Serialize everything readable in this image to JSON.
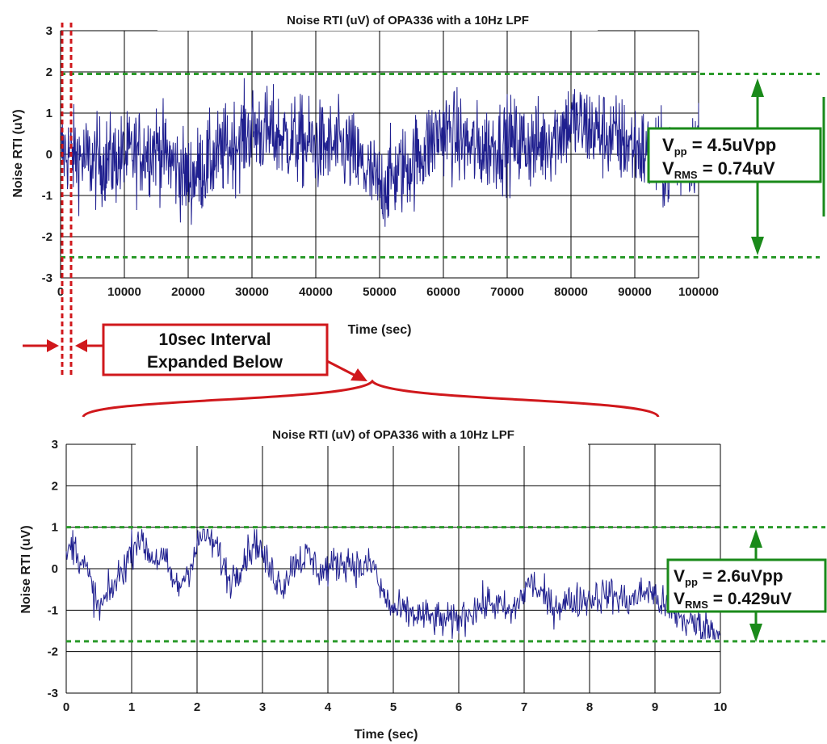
{
  "chart_data": [
    {
      "type": "line",
      "title": "Noise RTI (uV) of OPA336 with a 10Hz LPF",
      "xlabel": "Time (sec)",
      "ylabel": "Noise RTI (uV)",
      "xlim": [
        0,
        100000
      ],
      "ylim": [
        -3,
        3
      ],
      "x_ticks": [
        "0",
        "10000",
        "20000",
        "30000",
        "40000",
        "50000",
        "60000",
        "70000",
        "80000",
        "90000",
        "100000"
      ],
      "y_ticks": [
        "3",
        "2",
        "1",
        "0",
        "-1",
        "-2",
        "-3"
      ],
      "grid": true,
      "peak_lines": [
        1.95,
        -2.5
      ],
      "stats": {
        "vpp": "4.5uVpp",
        "vrms": "0.74uV"
      },
      "series": [
        {
          "color": "#1f1f8f",
          "x": [
            0,
            5000,
            10000,
            15000,
            20000,
            25000,
            30000,
            35000,
            40000,
            45000,
            50000,
            55000,
            60000,
            65000,
            70000,
            75000,
            80000,
            85000,
            90000,
            95000,
            100000
          ],
          "y": [
            0.1,
            -0.2,
            -0.1,
            0.2,
            -0.6,
            0.0,
            0.6,
            0.4,
            0.2,
            0.1,
            -0.8,
            -0.2,
            0.6,
            0.1,
            0.3,
            0.2,
            0.8,
            0.5,
            0.2,
            -0.3,
            0.2
          ]
        }
      ]
    },
    {
      "type": "line",
      "title": "Noise RTI (uV) of OPA336 with a 10Hz LPF",
      "xlabel": "Time (sec)",
      "ylabel": "Noise RTI (uV)",
      "xlim": [
        0,
        10
      ],
      "ylim": [
        -3,
        3
      ],
      "x_ticks": [
        "0",
        "1",
        "2",
        "3",
        "4",
        "5",
        "6",
        "7",
        "8",
        "9",
        "10"
      ],
      "y_ticks": [
        "3",
        "2",
        "1",
        "0",
        "-1",
        "-2",
        "-3"
      ],
      "grid": true,
      "peak_lines": [
        1.0,
        -1.75
      ],
      "stats": {
        "vpp": "2.6uVpp",
        "vrms": "0.429uV"
      },
      "series": [
        {
          "color": "#1f1f8f",
          "x": [
            0,
            0.1,
            0.3,
            0.5,
            0.7,
            0.9,
            1.1,
            1.3,
            1.5,
            1.7,
            1.9,
            2.1,
            2.3,
            2.5,
            2.7,
            2.9,
            3.1,
            3.3,
            3.5,
            3.7,
            3.9,
            4.1,
            4.3,
            4.5,
            4.7,
            4.8,
            5.0,
            5.3,
            5.6,
            5.9,
            6.2,
            6.5,
            6.8,
            7.1,
            7.4,
            7.7,
            8.0,
            8.3,
            8.6,
            8.9,
            9.2,
            9.5,
            9.8,
            10.0
          ],
          "y": [
            0.3,
            0.6,
            0.0,
            -1.0,
            -0.5,
            0.1,
            0.8,
            0.3,
            0.2,
            -0.5,
            0.1,
            0.9,
            0.5,
            -0.3,
            0.2,
            0.7,
            0.0,
            -0.4,
            0.2,
            0.3,
            -0.1,
            0.1,
            0.2,
            0.0,
            0.1,
            -0.5,
            -1.0,
            -1.1,
            -1.2,
            -1.3,
            -1.0,
            -0.8,
            -1.1,
            -0.3,
            -0.9,
            -0.8,
            -0.7,
            -0.6,
            -0.8,
            -0.5,
            -1.0,
            -1.3,
            -1.4,
            -1.6
          ]
        }
      ]
    }
  ],
  "annotations": {
    "interval_box": [
      "10sec Interval",
      "Expanded Below"
    ],
    "top_stats": {
      "vpp_sym": "V",
      "vpp_sub": "pp",
      "vpp_val": " = 4.5uVpp",
      "vrms_sym": "V",
      "vrms_sub": "RMS",
      "vrms_val": " = 0.74uV"
    },
    "bottom_stats": {
      "vpp_sym": "V",
      "vpp_sub": "pp",
      "vpp_val": " = 2.6uVpp",
      "vrms_sym": "V",
      "vrms_sub": "RMS",
      "vrms_val": " = 0.429uV"
    },
    "colors": {
      "grid": "#000000",
      "trace": "#1f1f8f",
      "peak_line": "#2a9a2a",
      "stat_box": "#1a8a1a",
      "interval": "#d0181c"
    }
  }
}
